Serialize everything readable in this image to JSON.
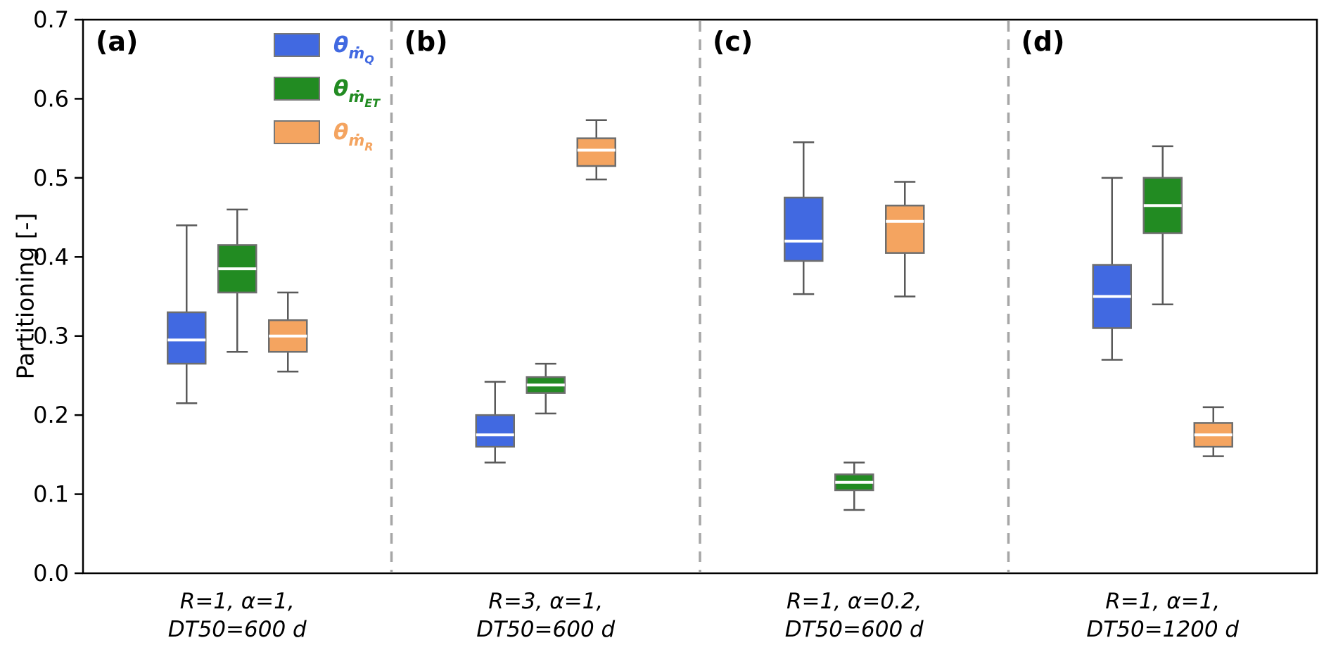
{
  "figure": {
    "background": "#ffffff"
  },
  "legend": {
    "items": [
      {
        "name": "theta-mdot-Q",
        "theta": "θ",
        "mdot": "ṁ",
        "sub": "Q",
        "color": "#4169E1"
      },
      {
        "name": "theta-mdot-ET",
        "theta": "θ",
        "mdot": "ṁ",
        "sub": "ET",
        "color": "#228B22"
      },
      {
        "name": "theta-mdot-R",
        "theta": "θ",
        "mdot": "ṁ",
        "sub": "R",
        "color": "#F4A460"
      }
    ]
  },
  "chart_data": {
    "type": "boxplot",
    "title": "",
    "ylabel": "Partitioning [-]",
    "ylim": [
      0.0,
      0.7
    ],
    "yticks": [
      0.0,
      0.1,
      0.2,
      0.3,
      0.4,
      0.5,
      0.6,
      0.7
    ],
    "grid": false,
    "legend_position": "upper-left-inside",
    "series": [
      {
        "name": "θ_ṁ_Q",
        "color": "#4169E1"
      },
      {
        "name": "θ_ṁ_ET",
        "color": "#228B22"
      },
      {
        "name": "θ_ṁ_R",
        "color": "#F4A460"
      }
    ],
    "style": {
      "box_edge": "#6e6e6e",
      "whisker": "#5a5a5a",
      "median": "#ffffff",
      "separator": "#a6a6a6",
      "frame": "#000000"
    },
    "panels": [
      {
        "label": "(a)",
        "xlabel_line1": "R=1, α=1,",
        "xlabel_line2": "DT50=600 d",
        "boxes": [
          {
            "series": "θ_ṁ_Q",
            "whislo": 0.215,
            "q1": 0.265,
            "med": 0.295,
            "q3": 0.33,
            "whishi": 0.44
          },
          {
            "series": "θ_ṁ_ET",
            "whislo": 0.28,
            "q1": 0.355,
            "med": 0.385,
            "q3": 0.415,
            "whishi": 0.46
          },
          {
            "series": "θ_ṁ_R",
            "whislo": 0.255,
            "q1": 0.28,
            "med": 0.3,
            "q3": 0.32,
            "whishi": 0.355
          }
        ]
      },
      {
        "label": "(b)",
        "xlabel_line1": "R=3, α=1,",
        "xlabel_line2": "DT50=600 d",
        "boxes": [
          {
            "series": "θ_ṁ_Q",
            "whislo": 0.14,
            "q1": 0.16,
            "med": 0.175,
            "q3": 0.2,
            "whishi": 0.242
          },
          {
            "series": "θ_ṁ_ET",
            "whislo": 0.202,
            "q1": 0.228,
            "med": 0.238,
            "q3": 0.248,
            "whishi": 0.265
          },
          {
            "series": "θ_ṁ_R",
            "whislo": 0.498,
            "q1": 0.515,
            "med": 0.535,
            "q3": 0.55,
            "whishi": 0.573
          }
        ]
      },
      {
        "label": "(c)",
        "xlabel_line1": "R=1, α=0.2,",
        "xlabel_line2": "DT50=600 d",
        "boxes": [
          {
            "series": "θ_ṁ_Q",
            "whislo": 0.353,
            "q1": 0.395,
            "med": 0.42,
            "q3": 0.475,
            "whishi": 0.545
          },
          {
            "series": "θ_ṁ_ET",
            "whislo": 0.08,
            "q1": 0.105,
            "med": 0.115,
            "q3": 0.125,
            "whishi": 0.14
          },
          {
            "series": "θ_ṁ_R",
            "whislo": 0.35,
            "q1": 0.405,
            "med": 0.445,
            "q3": 0.465,
            "whishi": 0.495
          }
        ]
      },
      {
        "label": "(d)",
        "xlabel_line1": "R=1, α=1,",
        "xlabel_line2": "DT50=1200 d",
        "boxes": [
          {
            "series": "θ_ṁ_Q",
            "whislo": 0.27,
            "q1": 0.31,
            "med": 0.35,
            "q3": 0.39,
            "whishi": 0.5
          },
          {
            "series": "θ_ṁ_ET",
            "whislo": 0.34,
            "q1": 0.43,
            "med": 0.465,
            "q3": 0.5,
            "whishi": 0.54
          },
          {
            "series": "θ_ṁ_R",
            "whislo": 0.148,
            "q1": 0.16,
            "med": 0.175,
            "q3": 0.19,
            "whishi": 0.21
          }
        ]
      }
    ]
  }
}
